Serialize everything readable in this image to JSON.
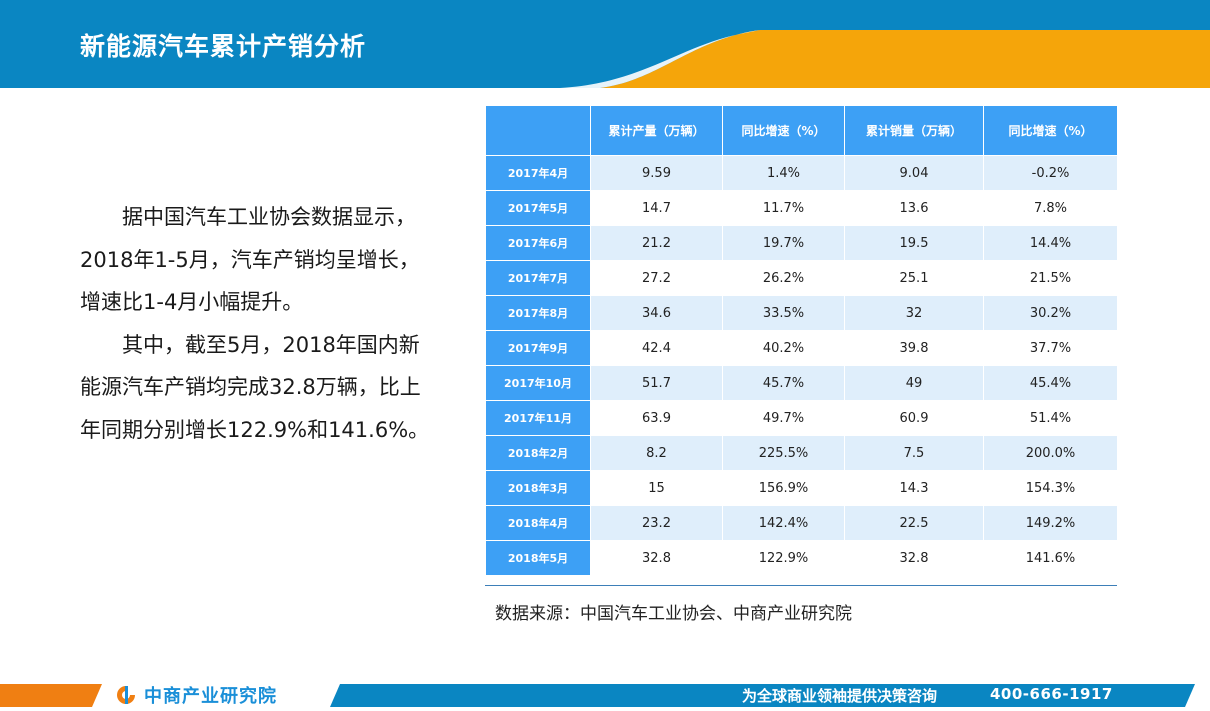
{
  "header": {
    "title": "新能源汽车累计产销分析",
    "colors": {
      "blue": "#0a86c2",
      "orange": "#f5a50a"
    }
  },
  "body": {
    "paragraphs": [
      "据中国汽车工业协会数据显示， 2018年1-5月，汽车产销均呈增长，增速比1-4月小幅提升。",
      "其中，截至5月，2018年国内新能源汽车产销均完成32.8万辆，比上年同期分别增长122.9%和141.6%。"
    ]
  },
  "table": {
    "header_color": "#3da0f5",
    "stripe_color": "#dfeefb",
    "columns": [
      "",
      "累计产量（万辆）",
      "同比增速（%）",
      "累计销量（万辆）",
      "同比增速（%）"
    ],
    "rows": [
      [
        "2017年4月",
        "9.59",
        "1.4%",
        "9.04",
        "-0.2%"
      ],
      [
        "2017年5月",
        "14.7",
        "11.7%",
        "13.6",
        "7.8%"
      ],
      [
        "2017年6月",
        "21.2",
        "19.7%",
        "19.5",
        "14.4%"
      ],
      [
        "2017年7月",
        "27.2",
        "26.2%",
        "25.1",
        "21.5%"
      ],
      [
        "2017年8月",
        "34.6",
        "33.5%",
        "32",
        "30.2%"
      ],
      [
        "2017年9月",
        "42.4",
        "40.2%",
        "39.8",
        "37.7%"
      ],
      [
        "2017年10月",
        "51.7",
        "45.7%",
        "49",
        "45.4%"
      ],
      [
        "2017年11月",
        "63.9",
        "49.7%",
        "60.9",
        "51.4%"
      ],
      [
        "2018年2月",
        "8.2",
        "225.5%",
        "7.5",
        "200.0%"
      ],
      [
        "2018年3月",
        "15",
        "156.9%",
        "14.3",
        "154.3%"
      ],
      [
        "2018年4月",
        "23.2",
        "142.4%",
        "22.5",
        "149.2%"
      ],
      [
        "2018年5月",
        "32.8",
        "122.9%",
        "32.8",
        "141.6%"
      ]
    ]
  },
  "source": "数据来源：中国汽车工业协会、中商产业研究院",
  "footer": {
    "logo_icon": "zhongshang-logo-icon",
    "logo_text": "中商产业研究院",
    "slogan": "为全球商业领袖提供决策咨询",
    "phone": "400-666-1917"
  }
}
